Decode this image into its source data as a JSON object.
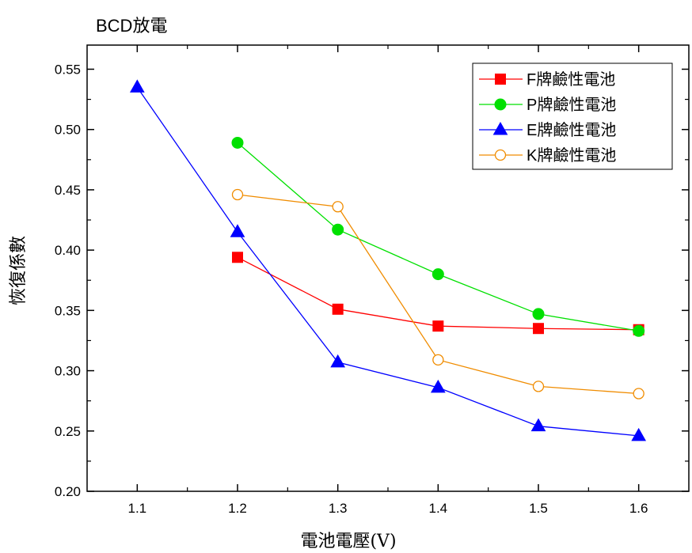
{
  "chart_data": {
    "type": "line",
    "title": "BCD放電",
    "xlabel": "電池電壓(V)",
    "ylabel": "恢復係數",
    "xlim": [
      1.05,
      1.65
    ],
    "ylim": [
      0.2,
      0.57
    ],
    "xticks": [
      "1.1",
      "1.2",
      "1.3",
      "1.4",
      "1.5",
      "1.6"
    ],
    "yticks": [
      "0.20",
      "0.25",
      "0.30",
      "0.35",
      "0.40",
      "0.45",
      "0.50",
      "0.55"
    ],
    "grid": false,
    "legend_position": "top-right",
    "series": [
      {
        "name": "F牌鹼性電池",
        "color": "#ff0000",
        "marker": "square-filled",
        "x": [
          1.2,
          1.3,
          1.4,
          1.5,
          1.6
        ],
        "y": [
          0.394,
          0.351,
          0.337,
          0.335,
          0.334
        ]
      },
      {
        "name": "P牌鹼性電池",
        "color": "#00e000",
        "marker": "circle-filled",
        "x": [
          1.2,
          1.3,
          1.4,
          1.5,
          1.6
        ],
        "y": [
          0.489,
          0.417,
          0.38,
          0.347,
          0.333
        ]
      },
      {
        "name": "E牌鹼性電池",
        "color": "#0000ff",
        "marker": "triangle-filled",
        "x": [
          1.1,
          1.2,
          1.3,
          1.4,
          1.5,
          1.6
        ],
        "y": [
          0.535,
          0.415,
          0.307,
          0.286,
          0.254,
          0.246
        ]
      },
      {
        "name": "K牌鹼性電池",
        "color": "#f08c00",
        "marker": "circle-open",
        "x": [
          1.2,
          1.3,
          1.4,
          1.5,
          1.6
        ],
        "y": [
          0.446,
          0.436,
          0.309,
          0.287,
          0.281
        ]
      }
    ]
  }
}
